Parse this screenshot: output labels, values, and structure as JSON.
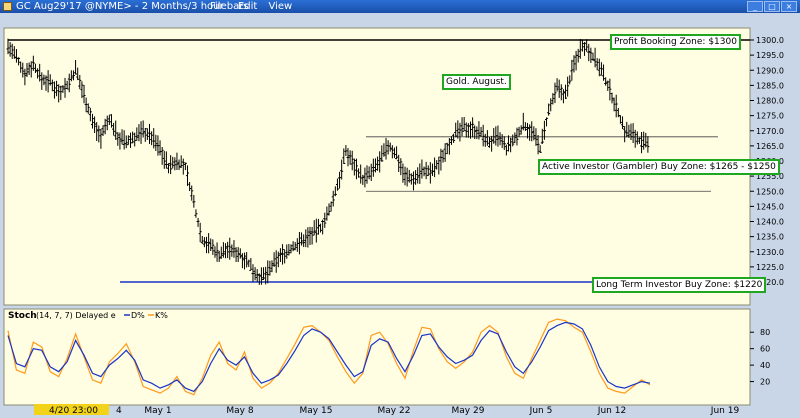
{
  "window": {
    "title": "GC Aug29'17 @NYME> - 2 Months/3 hour bars",
    "menu": [
      "File",
      "Edit",
      "View"
    ],
    "buttons": [
      "_",
      "□",
      "×"
    ]
  },
  "chart_data": [
    {
      "type": "line",
      "subtype": "ohlc-bars",
      "title": "Gold. August.",
      "yrange": [
        1215,
        1305
      ],
      "y_ticks": [
        1220,
        1225,
        1230,
        1235,
        1240,
        1245,
        1250,
        1255,
        1260,
        1265,
        1270,
        1275,
        1280,
        1285,
        1290,
        1295,
        1300
      ],
      "x_labels": [
        "4/20 23:00",
        "4",
        "May 1",
        "May 8",
        "May 15",
        "May 22",
        "May 29",
        "Jun 5",
        "Jun 12",
        "Jun 19"
      ],
      "grid": false,
      "series": [
        {
          "values": [
            1298,
            1294,
            1289,
            1292,
            1287,
            1286,
            1283,
            1285,
            1290,
            1282,
            1273,
            1268,
            1274,
            1268,
            1266,
            1268,
            1270,
            1268,
            1264,
            1258,
            1260,
            1258,
            1246,
            1234,
            1232,
            1229,
            1231,
            1230,
            1228,
            1224,
            1221,
            1224,
            1228,
            1230,
            1232,
            1234,
            1236,
            1238,
            1243,
            1252,
            1263,
            1259,
            1254,
            1256,
            1260,
            1265,
            1262,
            1255,
            1254,
            1257,
            1256,
            1259,
            1265,
            1269,
            1271,
            1271,
            1269,
            1266,
            1268,
            1264,
            1267,
            1272,
            1270,
            1264,
            1276,
            1284,
            1282,
            1292,
            1299,
            1296,
            1291,
            1285,
            1278,
            1270,
            1269,
            1266,
            1265
          ],
          "color": "#000000"
        }
      ],
      "levels": [
        {
          "value": 1300,
          "color": "#000000"
        },
        {
          "value": 1220,
          "color": "#1a35c8"
        },
        {
          "value": 1268,
          "color": "#444444"
        },
        {
          "value": 1250,
          "color": "#444444"
        }
      ],
      "annotations": [
        {
          "label": "Profit Booking Zone: $1300",
          "y": 1300
        },
        {
          "label": "Active Investor (Gambler)  Buy Zone: $1265 - $1250",
          "y": 1260
        },
        {
          "label": "Long Term Investor Buy Zone: $1220",
          "y": 1220
        },
        {
          "label": "Gold. August.",
          "y": 1284
        }
      ]
    },
    {
      "type": "line",
      "title": "Stoch",
      "params": "(14, 7, 7) Delayed e",
      "legend_placement": "top-left",
      "yrange": [
        0,
        100
      ],
      "y_ticks": [
        20,
        40,
        60,
        80
      ],
      "series": [
        {
          "name": "D%",
          "color": "#1a35c8",
          "values": [
            76,
            42,
            38,
            60,
            58,
            38,
            32,
            44,
            70,
            52,
            30,
            26,
            40,
            48,
            58,
            46,
            22,
            18,
            12,
            16,
            22,
            12,
            8,
            20,
            42,
            60,
            46,
            40,
            50,
            30,
            18,
            22,
            28,
            42,
            58,
            76,
            84,
            80,
            72,
            56,
            40,
            26,
            32,
            64,
            72,
            68,
            48,
            32,
            52,
            76,
            78,
            62,
            50,
            42,
            46,
            52,
            70,
            82,
            78,
            56,
            38,
            30,
            44,
            62,
            82,
            88,
            92,
            90,
            84,
            64,
            38,
            20,
            14,
            12,
            16,
            20,
            18
          ]
        },
        {
          "name": "K%",
          "color": "#ff9a1a",
          "values": [
            82,
            34,
            30,
            68,
            62,
            32,
            26,
            48,
            78,
            50,
            22,
            18,
            44,
            54,
            66,
            44,
            14,
            10,
            6,
            12,
            26,
            8,
            4,
            24,
            52,
            68,
            42,
            34,
            56,
            24,
            12,
            18,
            30,
            48,
            66,
            86,
            88,
            80,
            70,
            50,
            32,
            18,
            30,
            76,
            80,
            66,
            42,
            24,
            58,
            86,
            84,
            60,
            44,
            36,
            44,
            56,
            80,
            88,
            80,
            50,
            30,
            24,
            48,
            70,
            92,
            96,
            94,
            86,
            80,
            56,
            30,
            12,
            8,
            6,
            14,
            22,
            16
          ]
        }
      ]
    }
  ]
}
